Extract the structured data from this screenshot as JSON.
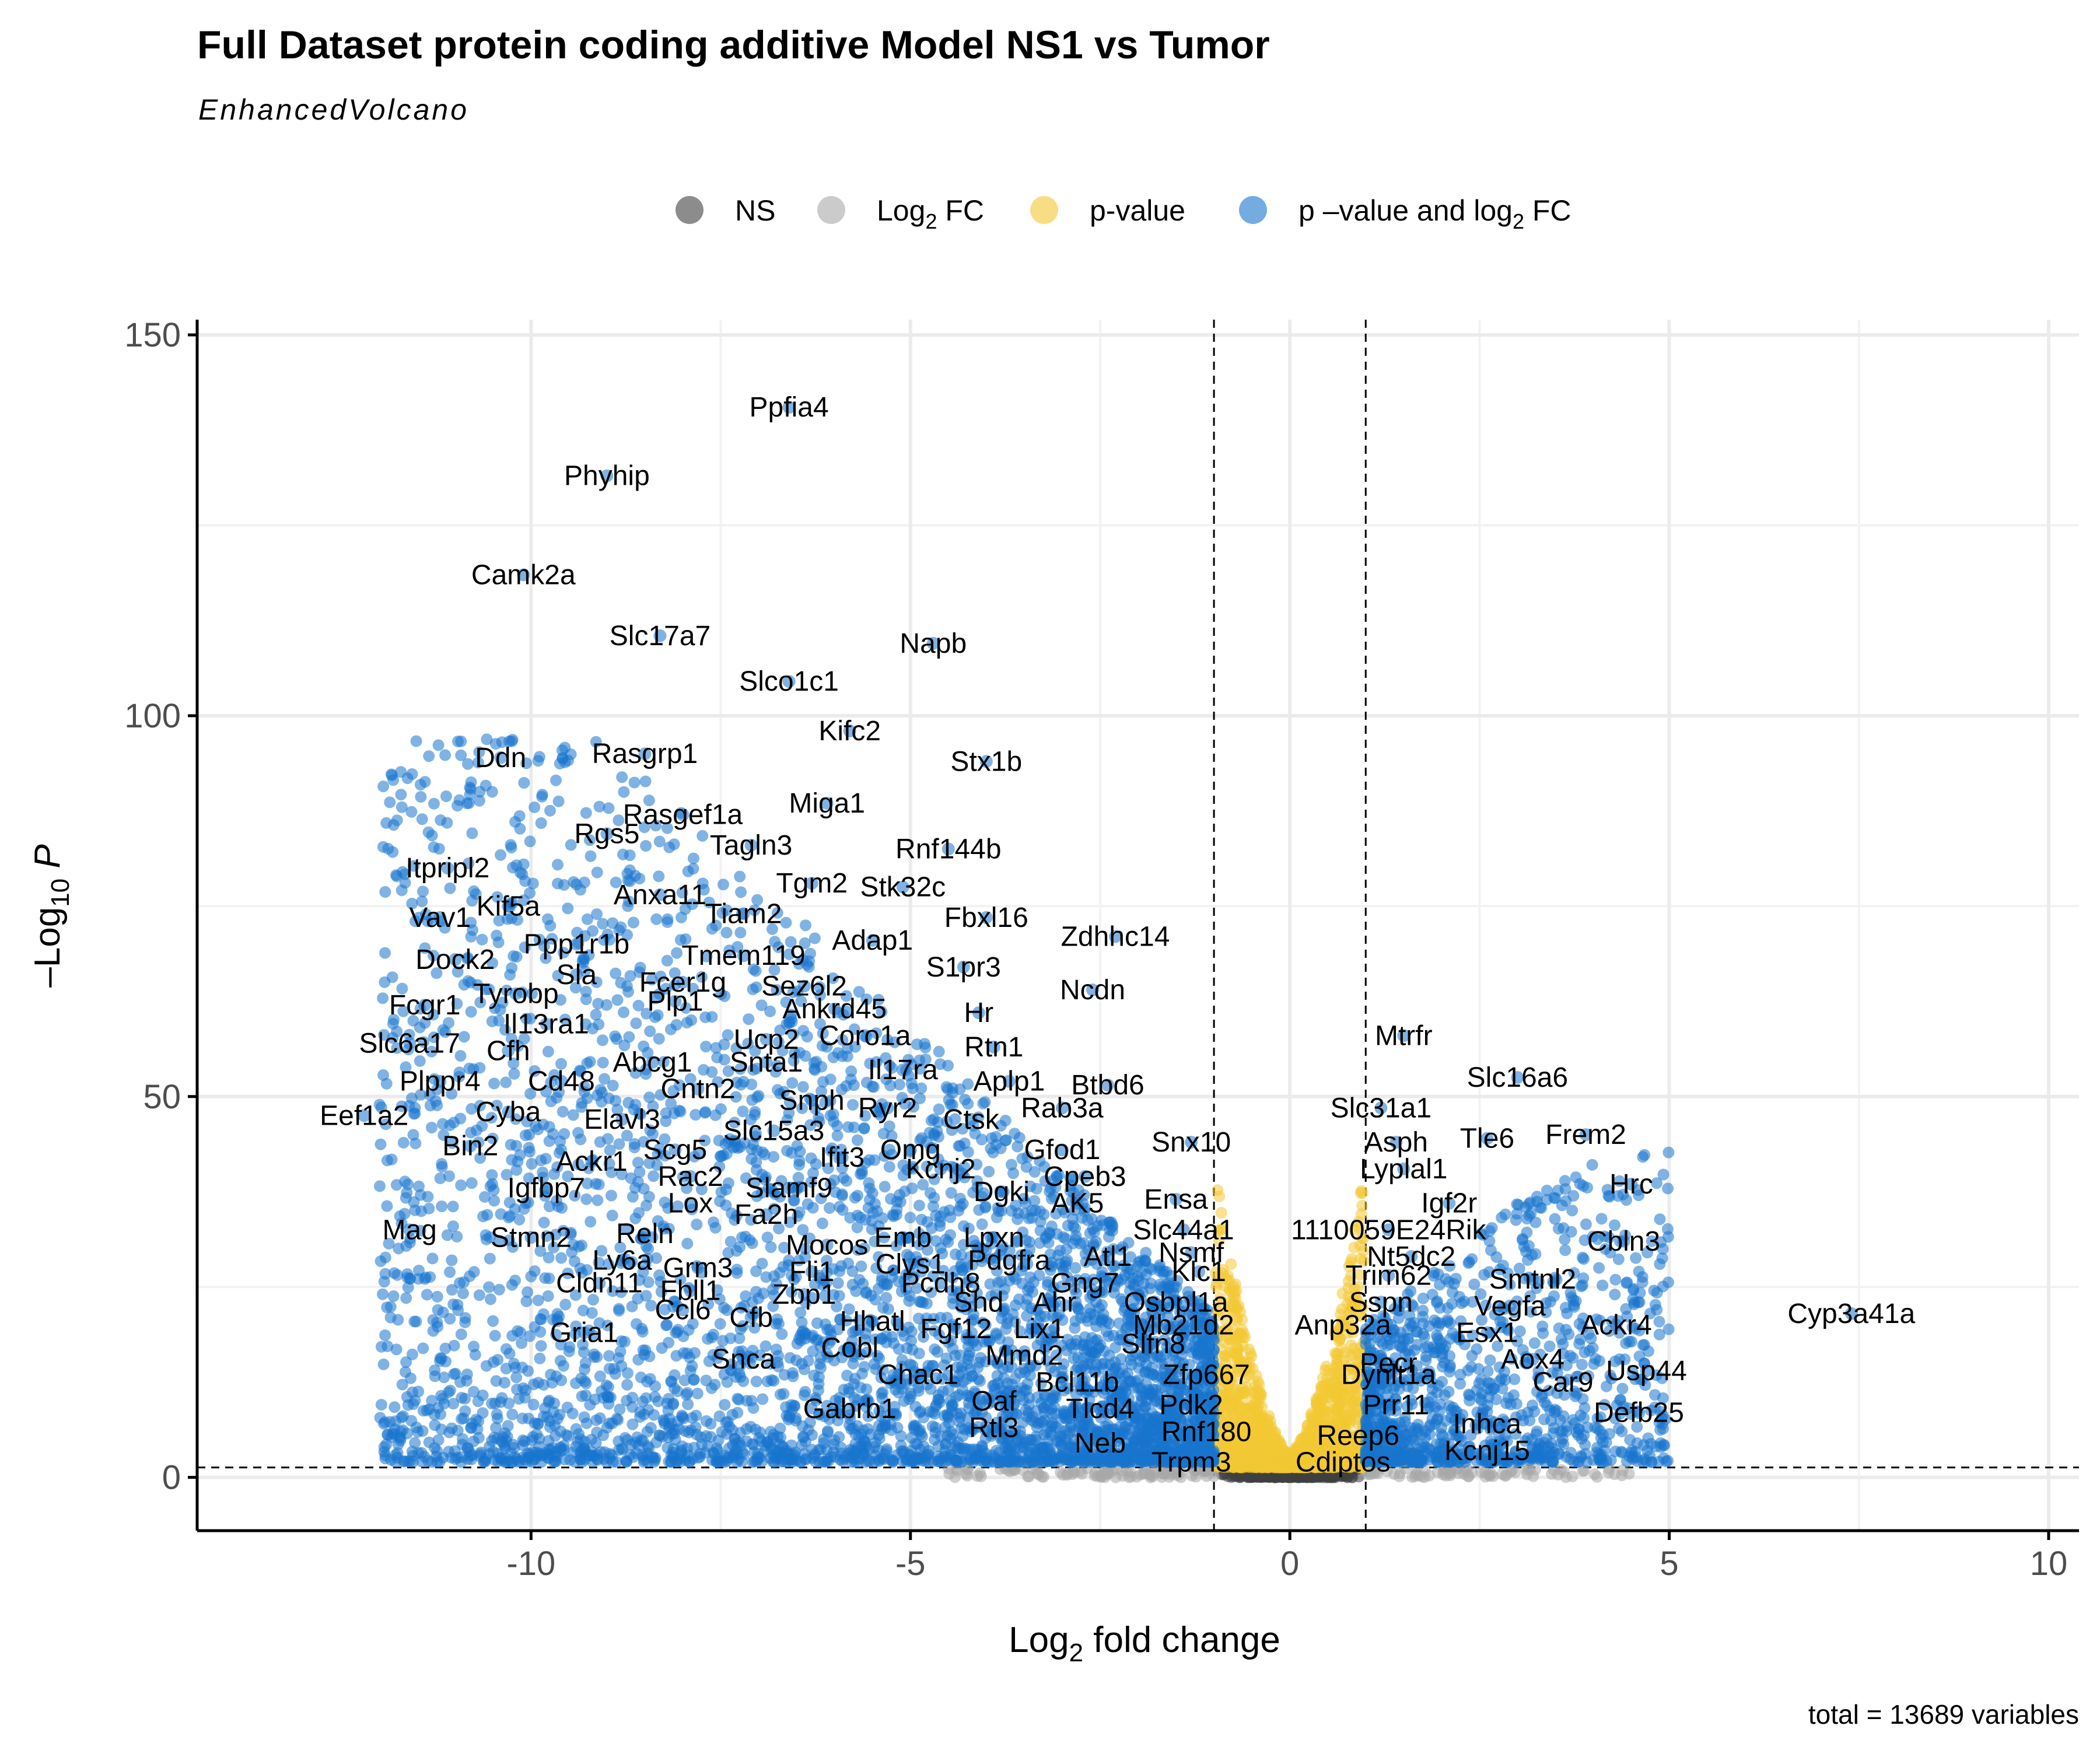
{
  "chart_data": {
    "type": "scatter",
    "title": "Full Dataset protein coding additive Model NS1 vs Tumor",
    "subtitle": "EnhancedVolcano",
    "xlabel_main": "Log",
    "xlabel_sub": "2",
    "xlabel_rest": " fold change",
    "ylabel_neg": "–Log",
    "ylabel_sub": "10",
    "ylabel_var": " P",
    "caption": "total = 13689 variables",
    "xlim": [
      -14.4,
      10.4
    ],
    "ylim": [
      -7,
      152
    ],
    "x_ticks": [
      -10,
      -5,
      0,
      5,
      10
    ],
    "x_tick_labels": [
      "-10",
      "-5",
      "0",
      "5",
      "10"
    ],
    "y_ticks": [
      0,
      50,
      100,
      150
    ],
    "y_tick_labels": [
      "0",
      "50",
      "100",
      "150"
    ],
    "fc_cutoff": 1,
    "p_cutoff_log": 1.3,
    "grid": true,
    "legend_position": "top",
    "legend": [
      {
        "key": "NS",
        "label": "NS",
        "sub": "",
        "suffix": "",
        "color": "#404040"
      },
      {
        "key": "FC",
        "label": "Log",
        "sub": "2",
        "suffix": " FC",
        "color": "#a8a8a8"
      },
      {
        "key": "P",
        "label": "p-value",
        "sub": "",
        "suffix": "",
        "color": "#f2c833"
      },
      {
        "key": "FC_P",
        "label": "p –value and log",
        "sub": "2",
        "suffix": " FC",
        "color": "#1874cd"
      }
    ],
    "series_colors": {
      "NS": "#404040",
      "FC": "#a8a8a8",
      "P": "#f2c833",
      "FC_P": "#1874cd"
    },
    "labeled_genes": [
      {
        "label": "Ppfia4",
        "x": -6.6,
        "y": 140.5
      },
      {
        "label": "Phyhip",
        "x": -9.0,
        "y": 131.5
      },
      {
        "label": "Camk2a",
        "x": -10.1,
        "y": 118.5
      },
      {
        "label": "Slc17a7",
        "x": -8.3,
        "y": 110.5
      },
      {
        "label": "Napb",
        "x": -4.7,
        "y": 109.5
      },
      {
        "label": "Slco1c1",
        "x": -6.6,
        "y": 104.5
      },
      {
        "label": "Kifc2",
        "x": -5.8,
        "y": 98.0
      },
      {
        "label": "Stx1b",
        "x": -4.0,
        "y": 94.0
      },
      {
        "label": "Ddn",
        "x": -10.4,
        "y": 94.5
      },
      {
        "label": "Rasgrp1",
        "x": -8.5,
        "y": 95.0
      },
      {
        "label": "Rasgef1a",
        "x": -8.0,
        "y": 87.0
      },
      {
        "label": "Miga1",
        "x": -6.1,
        "y": 88.5
      },
      {
        "label": "Rgs5",
        "x": -9.0,
        "y": 84.5
      },
      {
        "label": "Tagln3",
        "x": -7.1,
        "y": 83.0
      },
      {
        "label": "Rnf144b",
        "x": -4.5,
        "y": 82.5
      },
      {
        "label": "Itpripl2",
        "x": -11.1,
        "y": 80.0
      },
      {
        "label": "Tgm2",
        "x": -6.3,
        "y": 78.0
      },
      {
        "label": "Stk32c",
        "x": -5.1,
        "y": 77.5
      },
      {
        "label": "Kif5a",
        "x": -10.3,
        "y": 75.0
      },
      {
        "label": "Anxa11",
        "x": -8.3,
        "y": 76.5
      },
      {
        "label": "Vav1",
        "x": -11.2,
        "y": 73.5
      },
      {
        "label": "Tiam2",
        "x": -7.2,
        "y": 74.0
      },
      {
        "label": "Fbxl16",
        "x": -4.0,
        "y": 73.5
      },
      {
        "label": "Zdhhc14",
        "x": -2.3,
        "y": 71.0
      },
      {
        "label": "Adap1",
        "x": -5.5,
        "y": 70.5
      },
      {
        "label": "Ppp1r1b",
        "x": -9.4,
        "y": 70.0
      },
      {
        "label": "Dock2",
        "x": -11.0,
        "y": 68.0
      },
      {
        "label": "Tmem119",
        "x": -7.2,
        "y": 68.5
      },
      {
        "label": "S1pr3",
        "x": -4.3,
        "y": 67.0
      },
      {
        "label": "Sla",
        "x": -9.4,
        "y": 66.0
      },
      {
        "label": "Fcer1g",
        "x": -8.0,
        "y": 65.0
      },
      {
        "label": "Sez6l2",
        "x": -6.4,
        "y": 64.5
      },
      {
        "label": "Ncdn",
        "x": -2.6,
        "y": 64.0
      },
      {
        "label": "Tyrobp",
        "x": -10.2,
        "y": 63.5
      },
      {
        "label": "Plp1",
        "x": -8.1,
        "y": 62.5
      },
      {
        "label": "Ankrd45",
        "x": -6.0,
        "y": 61.5
      },
      {
        "label": "Hr",
        "x": -4.1,
        "y": 61.0
      },
      {
        "label": "Fcgr1",
        "x": -11.4,
        "y": 62.0
      },
      {
        "label": "Il13ra1",
        "x": -9.8,
        "y": 59.5
      },
      {
        "label": "Coro1a",
        "x": -5.6,
        "y": 58.0
      },
      {
        "label": "Ucp2",
        "x": -6.9,
        "y": 57.5
      },
      {
        "label": "Mtrfr",
        "x": 1.5,
        "y": 58.0
      },
      {
        "label": "Slc6a17",
        "x": -11.6,
        "y": 57.0
      },
      {
        "label": "Rtn1",
        "x": -3.9,
        "y": 56.5
      },
      {
        "label": "Cfh",
        "x": -10.3,
        "y": 56.0
      },
      {
        "label": "Abcg1",
        "x": -8.4,
        "y": 54.5
      },
      {
        "label": "Snta1",
        "x": -6.9,
        "y": 54.5
      },
      {
        "label": "Il17ra",
        "x": -5.1,
        "y": 53.5
      },
      {
        "label": "Plppr4",
        "x": -11.2,
        "y": 52.0
      },
      {
        "label": "Cd48",
        "x": -9.6,
        "y": 52.0
      },
      {
        "label": "Aplp1",
        "x": -3.7,
        "y": 52.0
      },
      {
        "label": "Btbd6",
        "x": -2.4,
        "y": 51.5
      },
      {
        "label": "Slc16a6",
        "x": 3.0,
        "y": 52.5
      },
      {
        "label": "Cntn2",
        "x": -7.8,
        "y": 51.0
      },
      {
        "label": "Snph",
        "x": -6.3,
        "y": 49.5
      },
      {
        "label": "Cyba",
        "x": -10.3,
        "y": 48.0
      },
      {
        "label": "Ryr2",
        "x": -5.3,
        "y": 48.5
      },
      {
        "label": "Rab3a",
        "x": -3.0,
        "y": 48.5
      },
      {
        "label": "Slc31a1",
        "x": 1.2,
        "y": 48.5
      },
      {
        "label": "Eef1a2",
        "x": -12.2,
        "y": 47.5
      },
      {
        "label": "Elavl3",
        "x": -8.8,
        "y": 47.0
      },
      {
        "label": "Ctsk",
        "x": -4.2,
        "y": 47.0
      },
      {
        "label": "Frem2",
        "x": 3.9,
        "y": 45.0
      },
      {
        "label": "Slc15a3",
        "x": -6.8,
        "y": 45.5
      },
      {
        "label": "Tle6",
        "x": 2.6,
        "y": 44.5
      },
      {
        "label": "Asph",
        "x": 1.4,
        "y": 44.0
      },
      {
        "label": "Bin2",
        "x": -10.8,
        "y": 43.5
      },
      {
        "label": "Snx10",
        "x": -1.3,
        "y": 44.0
      },
      {
        "label": "Scg5",
        "x": -8.1,
        "y": 43.0
      },
      {
        "label": "Omg",
        "x": -5.0,
        "y": 43.0
      },
      {
        "label": "Gfod1",
        "x": -3.0,
        "y": 43.0
      },
      {
        "label": "Ifit3",
        "x": -5.9,
        "y": 42.0
      },
      {
        "label": "Ackr1",
        "x": -9.2,
        "y": 41.5
      },
      {
        "label": "Kcnj2",
        "x": -4.6,
        "y": 40.5
      },
      {
        "label": "Lyplal1",
        "x": 1.5,
        "y": 40.5
      },
      {
        "label": "Rac2",
        "x": -7.9,
        "y": 39.5
      },
      {
        "label": "Cpeb3",
        "x": -2.7,
        "y": 39.5
      },
      {
        "label": "Hrc",
        "x": 4.5,
        "y": 38.5
      },
      {
        "label": "Igfbp7",
        "x": -9.8,
        "y": 38.0
      },
      {
        "label": "Slamf9",
        "x": -6.6,
        "y": 38.0
      },
      {
        "label": "Dgki",
        "x": -3.8,
        "y": 37.5
      },
      {
        "label": "Lox",
        "x": -7.9,
        "y": 36.0
      },
      {
        "label": "Ensa",
        "x": -1.5,
        "y": 36.5
      },
      {
        "label": "AK5",
        "x": -2.8,
        "y": 36.0
      },
      {
        "label": "Igf2r",
        "x": 2.1,
        "y": 36.0
      },
      {
        "label": "Fa2h",
        "x": -6.9,
        "y": 34.5
      },
      {
        "label": "Mag",
        "x": -11.6,
        "y": 32.5
      },
      {
        "label": "Slc44a1",
        "x": -1.4,
        "y": 32.5
      },
      {
        "label": "1110059E24Rik",
        "x": 1.3,
        "y": 32.5
      },
      {
        "label": "Reln",
        "x": -8.5,
        "y": 32.0
      },
      {
        "label": "Stmn2",
        "x": -10.0,
        "y": 31.5
      },
      {
        "label": "Emb",
        "x": -5.1,
        "y": 31.5
      },
      {
        "label": "Lpxn",
        "x": -3.9,
        "y": 31.5
      },
      {
        "label": "Cbln3",
        "x": 4.4,
        "y": 31.0
      },
      {
        "label": "Mocos",
        "x": -6.1,
        "y": 30.5
      },
      {
        "label": "Nsmf",
        "x": -1.3,
        "y": 29.5
      },
      {
        "label": "Atl1",
        "x": -2.4,
        "y": 29.0
      },
      {
        "label": "Nt5dc2",
        "x": 1.6,
        "y": 29.0
      },
      {
        "label": "Pdgfra",
        "x": -3.7,
        "y": 28.5
      },
      {
        "label": "Ly6a",
        "x": -8.8,
        "y": 28.5
      },
      {
        "label": "Clvs1",
        "x": -5.0,
        "y": 28.0
      },
      {
        "label": "Grm3",
        "x": -7.8,
        "y": 27.5
      },
      {
        "label": "Fli1",
        "x": -6.3,
        "y": 27.0
      },
      {
        "label": "Klc1",
        "x": -1.2,
        "y": 27.0
      },
      {
        "label": "Trim62",
        "x": 1.3,
        "y": 26.5
      },
      {
        "label": "Smtnl2",
        "x": 3.2,
        "y": 26.0
      },
      {
        "label": "Cldn11",
        "x": -9.1,
        "y": 25.5
      },
      {
        "label": "Pcdh8",
        "x": -4.6,
        "y": 25.5
      },
      {
        "label": "Gng7",
        "x": -2.7,
        "y": 25.5
      },
      {
        "label": "Fbll1",
        "x": -7.9,
        "y": 24.5
      },
      {
        "label": "Zbp1",
        "x": -6.4,
        "y": 24.0
      },
      {
        "label": "Shd",
        "x": -4.1,
        "y": 23.0
      },
      {
        "label": "Ahr",
        "x": -3.1,
        "y": 23.0
      },
      {
        "label": "Osbpl1a",
        "x": -1.5,
        "y": 23.0
      },
      {
        "label": "Sspn",
        "x": 1.2,
        "y": 23.0
      },
      {
        "label": "Vegfa",
        "x": 2.9,
        "y": 22.5
      },
      {
        "label": "Ccl6",
        "x": -8.0,
        "y": 22.0
      },
      {
        "label": "Cfb",
        "x": -7.1,
        "y": 21.0
      },
      {
        "label": "Hhatl",
        "x": -5.5,
        "y": 20.5
      },
      {
        "label": "Fgf12",
        "x": -4.4,
        "y": 19.5
      },
      {
        "label": "Mb21d2",
        "x": -1.4,
        "y": 20.0
      },
      {
        "label": "Ackr4",
        "x": 4.3,
        "y": 20.0
      },
      {
        "label": "Cyp3a41a",
        "x": 7.4,
        "y": 21.5
      },
      {
        "label": "Anp32a",
        "x": 0.7,
        "y": 20.0
      },
      {
        "label": "Lix1",
        "x": -3.3,
        "y": 19.5
      },
      {
        "label": "Esx1",
        "x": 2.6,
        "y": 19.0
      },
      {
        "label": "Gria1",
        "x": -9.3,
        "y": 19.0
      },
      {
        "label": "Slfn8",
        "x": -1.8,
        "y": 17.5
      },
      {
        "label": "Cobl",
        "x": -5.8,
        "y": 17.0
      },
      {
        "label": "Aox4",
        "x": 3.2,
        "y": 15.5
      },
      {
        "label": "Mmd2",
        "x": -3.5,
        "y": 16.0
      },
      {
        "label": "Snca",
        "x": -7.2,
        "y": 15.5
      },
      {
        "label": "Usp44",
        "x": 4.7,
        "y": 14.0
      },
      {
        "label": "Zfp667",
        "x": -1.1,
        "y": 13.5
      },
      {
        "label": "Dynlt1a",
        "x": 1.3,
        "y": 13.5
      },
      {
        "label": "Chac1",
        "x": -4.9,
        "y": 13.5
      },
      {
        "label": "Car9",
        "x": 3.6,
        "y": 12.5
      },
      {
        "label": "Bcl11b",
        "x": -2.8,
        "y": 12.5
      },
      {
        "label": "Pecr",
        "x": 1.3,
        "y": 15.0
      },
      {
        "label": "Oaf",
        "x": -3.9,
        "y": 10.0
      },
      {
        "label": "Prr11",
        "x": 1.4,
        "y": 9.5
      },
      {
        "label": "Pdk2",
        "x": -1.3,
        "y": 9.5
      },
      {
        "label": "Gabrb1",
        "x": -5.8,
        "y": 9.0
      },
      {
        "label": "Tlcd4",
        "x": -2.5,
        "y": 9.0
      },
      {
        "label": "Defb25",
        "x": 4.6,
        "y": 8.5
      },
      {
        "label": "Inhca",
        "x": 2.6,
        "y": 7.0
      },
      {
        "label": "Rtl3",
        "x": -3.9,
        "y": 6.5
      },
      {
        "label": "Rnf180",
        "x": -1.1,
        "y": 6.0
      },
      {
        "label": "Reep6",
        "x": 0.9,
        "y": 5.5
      },
      {
        "label": "Neb",
        "x": -2.5,
        "y": 4.5
      },
      {
        "label": "Kcnj15",
        "x": 2.6,
        "y": 3.5
      },
      {
        "label": "Trpm3",
        "x": -1.3,
        "y": 2.0
      },
      {
        "label": "Cdiptos",
        "x": 0.7,
        "y": 2.0
      }
    ]
  }
}
